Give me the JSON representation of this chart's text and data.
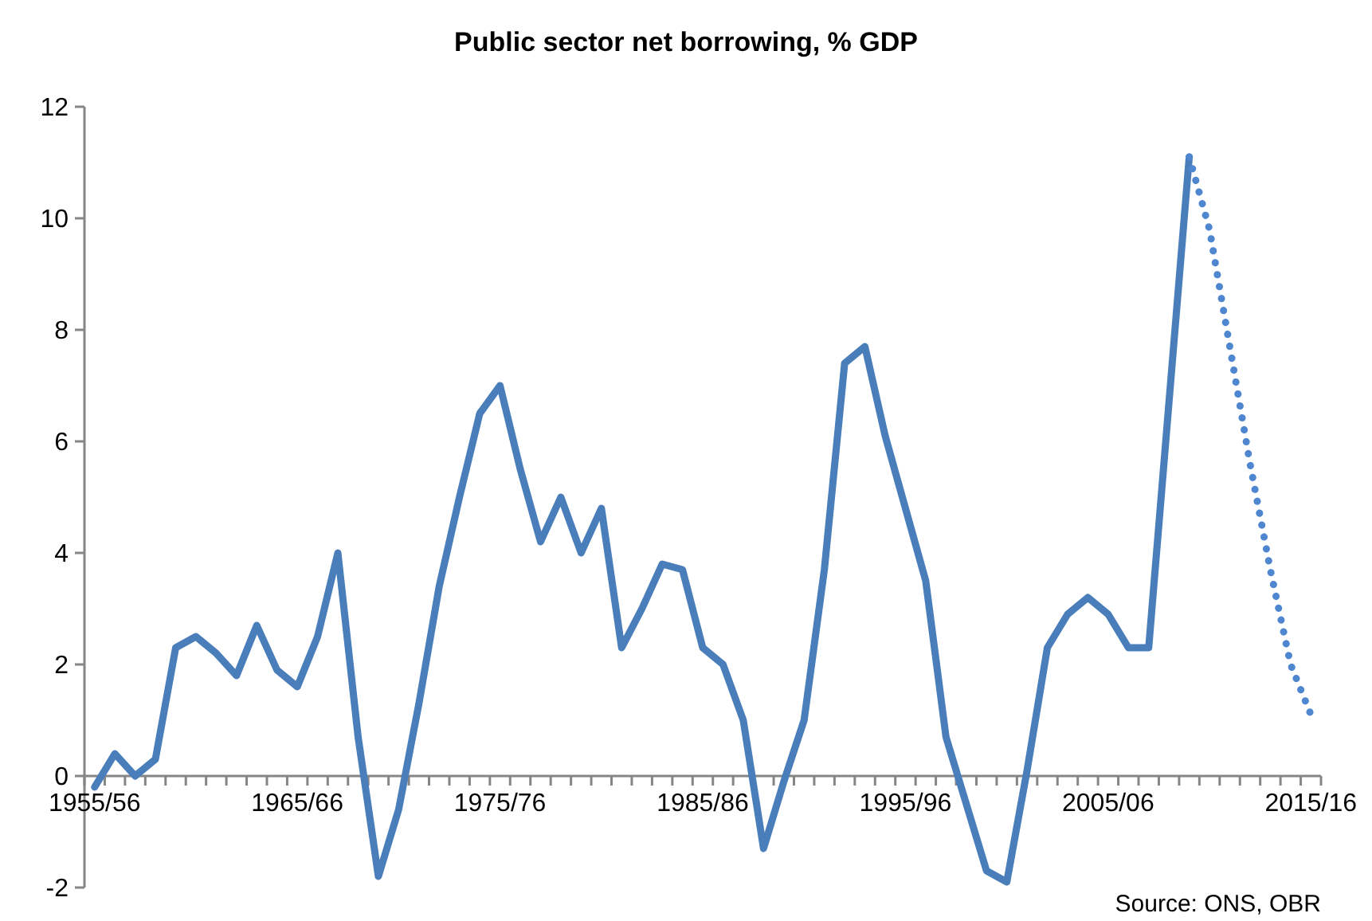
{
  "chart_data": {
    "type": "line",
    "title": "Public sector net borrowing, % GDP",
    "categories": [
      "1955/56",
      null,
      null,
      null,
      null,
      null,
      null,
      null,
      null,
      null,
      "1965/66",
      null,
      null,
      null,
      null,
      null,
      null,
      null,
      null,
      null,
      "1975/76",
      null,
      null,
      null,
      null,
      null,
      null,
      null,
      null,
      null,
      "1985/86",
      null,
      null,
      null,
      null,
      null,
      null,
      null,
      null,
      null,
      "1995/96",
      null,
      null,
      null,
      null,
      null,
      null,
      null,
      null,
      null,
      "2005/06",
      null,
      null,
      null,
      null,
      null,
      null,
      null,
      null,
      null,
      "2015/16"
    ],
    "series": [
      {
        "color": "#4a7ebb",
        "line_style": "solid",
        "values": [
          -0.2,
          0.4,
          0.0,
          0.3,
          2.3,
          2.5,
          2.2,
          1.8,
          2.7,
          1.9,
          1.6,
          2.5,
          4.0,
          0.7,
          -1.8,
          -0.6,
          1.3,
          3.4,
          5.0,
          6.5,
          7.0,
          5.5,
          4.2,
          5.0,
          4.0,
          4.8,
          2.3,
          3.0,
          3.8,
          3.7,
          2.3,
          2.0,
          1.0,
          -1.3,
          -0.1,
          1.0,
          3.7,
          7.4,
          7.7,
          6.1,
          4.8,
          3.5,
          0.7,
          -0.5,
          -1.7,
          -1.9,
          0.1,
          2.3,
          2.9,
          3.2,
          2.9,
          2.3,
          2.3,
          6.7,
          11.1,
          null,
          null,
          null,
          null,
          null,
          null
        ]
      },
      {
        "color": "#4f86d0",
        "line_style": "dotted",
        "values": [
          null,
          null,
          null,
          null,
          null,
          null,
          null,
          null,
          null,
          null,
          null,
          null,
          null,
          null,
          null,
          null,
          null,
          null,
          null,
          null,
          null,
          null,
          null,
          null,
          null,
          null,
          null,
          null,
          null,
          null,
          null,
          null,
          null,
          null,
          null,
          null,
          null,
          null,
          null,
          null,
          null,
          null,
          null,
          null,
          null,
          null,
          null,
          null,
          null,
          null,
          null,
          null,
          null,
          null,
          11.1,
          9.8,
          7.7,
          5.6,
          3.7,
          2.0,
          1.1
        ]
      }
    ],
    "ylim": [
      -2,
      12
    ],
    "yticks": [
      -2,
      0,
      2,
      4,
      6,
      8,
      10,
      12
    ],
    "annotations": [
      "Source: ONS, OBR"
    ]
  }
}
